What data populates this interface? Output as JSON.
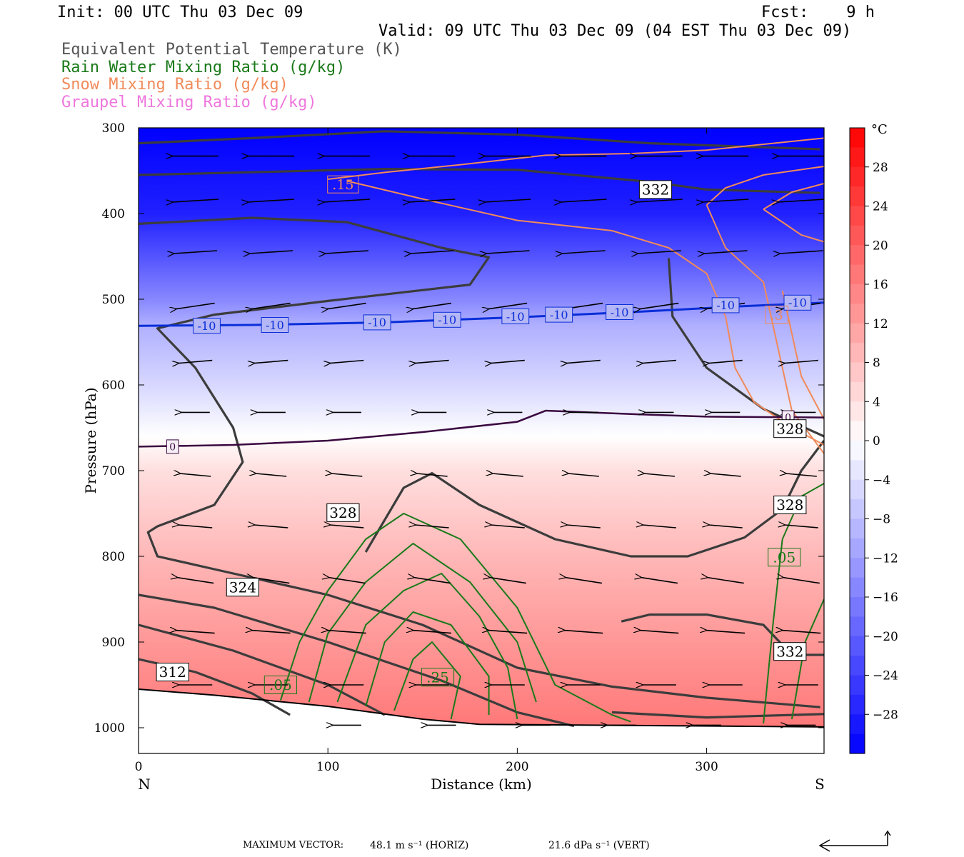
{
  "header": {
    "init": "Init: 00 UTC Thu 03 Dec 09",
    "fcst": "Fcst:    9 h",
    "valid": "Valid: 09 UTC Thu 03 Dec 09 (04 EST Thu 03 Dec 09)",
    "fields": [
      {
        "label": "Equivalent Potential Temperature (K)",
        "color": "#555555"
      },
      {
        "label": "Rain Water Mixing Ratio (g/kg)",
        "color": "#1a7a1a"
      },
      {
        "label": "Snow Mixing Ratio (g/kg)",
        "color": "#f08a5a"
      },
      {
        "label": "Graupel Mixing Ratio (g/kg)",
        "color": "#ee77dd"
      }
    ]
  },
  "chart_data": {
    "type": "cross-section",
    "xlabel": "Distance (km)",
    "ylabel": "Pressure (hPa)",
    "x_left_label": "N",
    "x_right_label": "S",
    "xlim": [
      0,
      362
    ],
    "ylim": [
      1030,
      300
    ],
    "xticks": [
      0,
      100,
      200,
      300
    ],
    "yticks": [
      300,
      400,
      500,
      600,
      700,
      800,
      900,
      1000
    ],
    "colorbar": {
      "unit": "°C",
      "ticks": [
        28,
        24,
        20,
        16,
        12,
        8,
        4,
        0,
        -4,
        -8,
        -12,
        -16,
        -20,
        -24,
        -28
      ],
      "range": [
        -32,
        32
      ]
    },
    "temperature_profile": [
      {
        "p": 300,
        "t": -32
      },
      {
        "p": 400,
        "t": -28
      },
      {
        "p": 500,
        "t": -15
      },
      {
        "p": 530,
        "t": -10
      },
      {
        "p": 600,
        "t": -5
      },
      {
        "p": 660,
        "t": 0
      },
      {
        "p": 700,
        "t": 4
      },
      {
        "p": 800,
        "t": 9
      },
      {
        "p": 900,
        "t": 13
      },
      {
        "p": 1000,
        "t": 17
      }
    ],
    "contour_labels": [
      {
        "text": ".15",
        "x": 108,
        "p": 366,
        "kind": "snow"
      },
      {
        "text": "332",
        "x": 273,
        "p": 372,
        "kind": "theta"
      },
      {
        "text": "-10",
        "x": 36,
        "p": 531,
        "kind": "isotherm"
      },
      {
        "text": "-10",
        "x": 72,
        "p": 530,
        "kind": "isotherm"
      },
      {
        "text": "-10",
        "x": 126,
        "p": 527,
        "kind": "isotherm"
      },
      {
        "text": "-10",
        "x": 163,
        "p": 524,
        "kind": "isotherm"
      },
      {
        "text": "-10",
        "x": 199,
        "p": 520,
        "kind": "isotherm"
      },
      {
        "text": "-10",
        "x": 222,
        "p": 518,
        "kind": "isotherm"
      },
      {
        "text": "-10",
        "x": 254,
        "p": 515,
        "kind": "isotherm"
      },
      {
        "text": "-10",
        "x": 310,
        "p": 507,
        "kind": "isotherm"
      },
      {
        "text": "-10",
        "x": 348,
        "p": 504,
        "kind": "isotherm"
      },
      {
        "text": ".3",
        "x": 337,
        "p": 518,
        "kind": "snow"
      },
      {
        "text": "0",
        "x": 18,
        "p": 672,
        "kind": "isotherm0"
      },
      {
        "text": "0",
        "x": 343,
        "p": 638,
        "kind": "isotherm0"
      },
      {
        "text": "328",
        "x": 344,
        "p": 651,
        "kind": "theta"
      },
      {
        "text": "328",
        "x": 108,
        "p": 749,
        "kind": "theta"
      },
      {
        "text": "328",
        "x": 344,
        "p": 740,
        "kind": "theta"
      },
      {
        "text": ".05",
        "x": 341,
        "p": 801,
        "kind": "rain"
      },
      {
        "text": "324",
        "x": 55,
        "p": 836,
        "kind": "theta"
      },
      {
        "text": "332",
        "x": 344,
        "p": 911,
        "kind": "theta"
      },
      {
        "text": "312",
        "x": 18,
        "p": 935,
        "kind": "theta"
      },
      {
        "text": ".25",
        "x": 158,
        "p": 941,
        "kind": "rain"
      },
      {
        "text": ".05",
        "x": 75,
        "p": 950,
        "kind": "rain"
      }
    ],
    "theta_e_contours": [
      [
        [
          0,
          318
        ],
        [
          60,
          312
        ],
        [
          130,
          304
        ],
        [
          200,
          308
        ],
        [
          270,
          318
        ],
        [
          360,
          325
        ]
      ],
      [
        [
          0,
          355
        ],
        [
          130,
          348
        ],
        [
          200,
          349
        ],
        [
          270,
          363
        ],
        [
          300,
          372
        ],
        [
          360,
          376
        ]
      ],
      [
        [
          0,
          412
        ],
        [
          60,
          405
        ],
        [
          110,
          410
        ],
        [
          160,
          440
        ],
        [
          185,
          451
        ],
        [
          175,
          483
        ],
        [
          100,
          502
        ],
        [
          40,
          518
        ],
        [
          10,
          534
        ],
        [
          30,
          580
        ],
        [
          50,
          650
        ],
        [
          55,
          690
        ],
        [
          40,
          740
        ],
        [
          10,
          765
        ],
        [
          5,
          772
        ],
        [
          10,
          800
        ],
        [
          40,
          815
        ],
        [
          100,
          845
        ],
        [
          150,
          880
        ],
        [
          200,
          930
        ],
        [
          250,
          952
        ],
        [
          300,
          965
        ],
        [
          360,
          976
        ]
      ],
      [
        [
          120,
          795
        ],
        [
          140,
          720
        ],
        [
          155,
          703
        ],
        [
          180,
          740
        ],
        [
          220,
          780
        ],
        [
          260,
          800
        ],
        [
          290,
          800
        ],
        [
          320,
          778
        ],
        [
          340,
          745
        ],
        [
          350,
          700
        ],
        [
          362,
          665
        ]
      ],
      [
        [
          280,
          452
        ],
        [
          282,
          520
        ],
        [
          300,
          580
        ],
        [
          330,
          628
        ],
        [
          362,
          660
        ]
      ],
      [
        [
          255,
          876
        ],
        [
          270,
          868
        ],
        [
          300,
          868
        ],
        [
          330,
          880
        ],
        [
          345,
          915
        ],
        [
          362,
          915
        ]
      ],
      [
        [
          0,
          845
        ],
        [
          40,
          860
        ],
        [
          100,
          900
        ],
        [
          160,
          945
        ],
        [
          200,
          982
        ],
        [
          230,
          998
        ]
      ],
      [
        [
          0,
          880
        ],
        [
          50,
          910
        ],
        [
          100,
          950
        ],
        [
          130,
          985
        ]
      ],
      [
        [
          0,
          920
        ],
        [
          30,
          935
        ],
        [
          60,
          960
        ],
        [
          80,
          985
        ]
      ],
      [
        [
          250,
          982
        ],
        [
          300,
          988
        ],
        [
          362,
          984
        ]
      ]
    ],
    "rain_contours": [
      [
        [
          75,
          968
        ],
        [
          85,
          900
        ],
        [
          100,
          840
        ],
        [
          120,
          780
        ],
        [
          140,
          750
        ],
        [
          170,
          780
        ],
        [
          200,
          860
        ],
        [
          220,
          950
        ],
        [
          250,
          985
        ],
        [
          260,
          993
        ]
      ],
      [
        [
          90,
          970
        ],
        [
          100,
          890
        ],
        [
          120,
          830
        ],
        [
          145,
          785
        ],
        [
          175,
          830
        ],
        [
          200,
          900
        ],
        [
          210,
          970
        ]
      ],
      [
        [
          105,
          970
        ],
        [
          120,
          880
        ],
        [
          140,
          840
        ],
        [
          160,
          820
        ],
        [
          180,
          870
        ],
        [
          195,
          930
        ],
        [
          200,
          990
        ]
      ],
      [
        [
          120,
          975
        ],
        [
          130,
          900
        ],
        [
          145,
          865
        ],
        [
          165,
          880
        ],
        [
          185,
          940
        ],
        [
          185,
          985
        ]
      ],
      [
        [
          135,
          980
        ],
        [
          145,
          920
        ],
        [
          155,
          900
        ],
        [
          170,
          940
        ],
        [
          165,
          990
        ]
      ],
      [
        [
          330,
          995
        ],
        [
          335,
          880
        ],
        [
          340,
          780
        ],
        [
          350,
          730
        ],
        [
          362,
          715
        ]
      ],
      [
        [
          345,
          990
        ],
        [
          352,
          900
        ],
        [
          362,
          850
        ]
      ]
    ],
    "snow_contours": [
      [
        [
          100,
          360
        ],
        [
          130,
          352
        ],
        [
          170,
          343
        ],
        [
          215,
          332
        ],
        [
          260,
          330
        ],
        [
          300,
          326
        ],
        [
          362,
          312
        ]
      ],
      [
        [
          110,
          362
        ],
        [
          150,
          383
        ],
        [
          200,
          408
        ],
        [
          250,
          420
        ],
        [
          280,
          440
        ],
        [
          300,
          470
        ],
        [
          310,
          520
        ],
        [
          315,
          580
        ],
        [
          325,
          620
        ],
        [
          345,
          650
        ],
        [
          362,
          670
        ]
      ],
      [
        [
          300,
          390
        ],
        [
          310,
          370
        ],
        [
          330,
          355
        ],
        [
          362,
          345
        ]
      ],
      [
        [
          300,
          390
        ],
        [
          310,
          440
        ],
        [
          330,
          480
        ],
        [
          335,
          530
        ],
        [
          340,
          580
        ],
        [
          345,
          630
        ],
        [
          362,
          680
        ]
      ],
      [
        [
          330,
          395
        ],
        [
          345,
          375
        ],
        [
          362,
          365
        ]
      ],
      [
        [
          330,
          395
        ],
        [
          350,
          425
        ],
        [
          362,
          433
        ]
      ],
      [
        [
          340,
          490
        ],
        [
          345,
          540
        ],
        [
          350,
          590
        ],
        [
          362,
          640
        ]
      ]
    ],
    "isotherm_m10": [
      [
        0,
        531
      ],
      [
        60,
        530
      ],
      [
        130,
        527
      ],
      [
        200,
        521
      ],
      [
        260,
        515
      ],
      [
        320,
        508
      ],
      [
        362,
        504
      ]
    ],
    "isotherm_0": [
      [
        0,
        672
      ],
      [
        50,
        670
      ],
      [
        100,
        665
      ],
      [
        150,
        655
      ],
      [
        200,
        643
      ],
      [
        215,
        630
      ],
      [
        260,
        634
      ],
      [
        300,
        637
      ],
      [
        362,
        638
      ]
    ],
    "terrain": [
      [
        0,
        955
      ],
      [
        40,
        962
      ],
      [
        100,
        975
      ],
      [
        150,
        990
      ],
      [
        180,
        996
      ],
      [
        362,
        999
      ]
    ],
    "wind_rows": [
      {
        "p": 333,
        "xs": [
          30,
          70,
          110,
          155,
          195,
          235,
          275,
          310,
          350
        ],
        "u": -48,
        "w": 0
      },
      {
        "p": 385,
        "xs": [
          30,
          70,
          110,
          155,
          195,
          235,
          275,
          310,
          350
        ],
        "u": -48,
        "w": -1
      },
      {
        "p": 445,
        "xs": [
          30,
          70,
          110,
          155,
          195,
          235,
          275,
          310,
          350
        ],
        "u": -45,
        "w": -1
      },
      {
        "p": 508,
        "xs": [
          30,
          70,
          110,
          155,
          195,
          235,
          275,
          310,
          350
        ],
        "u": -40,
        "w": -2
      },
      {
        "p": 573,
        "xs": [
          30,
          70,
          110,
          155,
          195,
          235,
          275,
          310,
          350
        ],
        "u": -35,
        "w": -1
      },
      {
        "p": 632,
        "xs": [
          30,
          70,
          110,
          155,
          195,
          235,
          275,
          310,
          350
        ],
        "u": -30,
        "w": 0
      },
      {
        "p": 705,
        "xs": [
          30,
          70,
          110,
          155,
          195,
          235,
          275,
          310,
          350
        ],
        "u": -32,
        "w": 1
      },
      {
        "p": 765,
        "xs": [
          30,
          70,
          110,
          155,
          195,
          235,
          275,
          310,
          350
        ],
        "u": -35,
        "w": 1
      },
      {
        "p": 828,
        "xs": [
          30,
          70,
          110,
          155,
          195,
          235,
          275,
          310,
          350
        ],
        "u": -38,
        "w": 2
      },
      {
        "p": 888,
        "xs": [
          30,
          70,
          110,
          155,
          195,
          235,
          275,
          310,
          350
        ],
        "u": -40,
        "w": 1
      },
      {
        "p": 950,
        "xs": [
          30,
          70,
          110,
          155,
          195,
          235,
          275,
          310,
          350
        ],
        "u": -35,
        "w": 0
      },
      {
        "p": 997,
        "xs": [
          110,
          160,
          210,
          255,
          300,
          350
        ],
        "u": -30,
        "w": 0
      }
    ]
  },
  "footer": {
    "max_vector_label": "MAXIMUM VECTOR:",
    "horiz": "48.1 m s⁻¹ (HORIZ)",
    "vert": "21.6 dPa s⁻¹ (VERT)"
  }
}
